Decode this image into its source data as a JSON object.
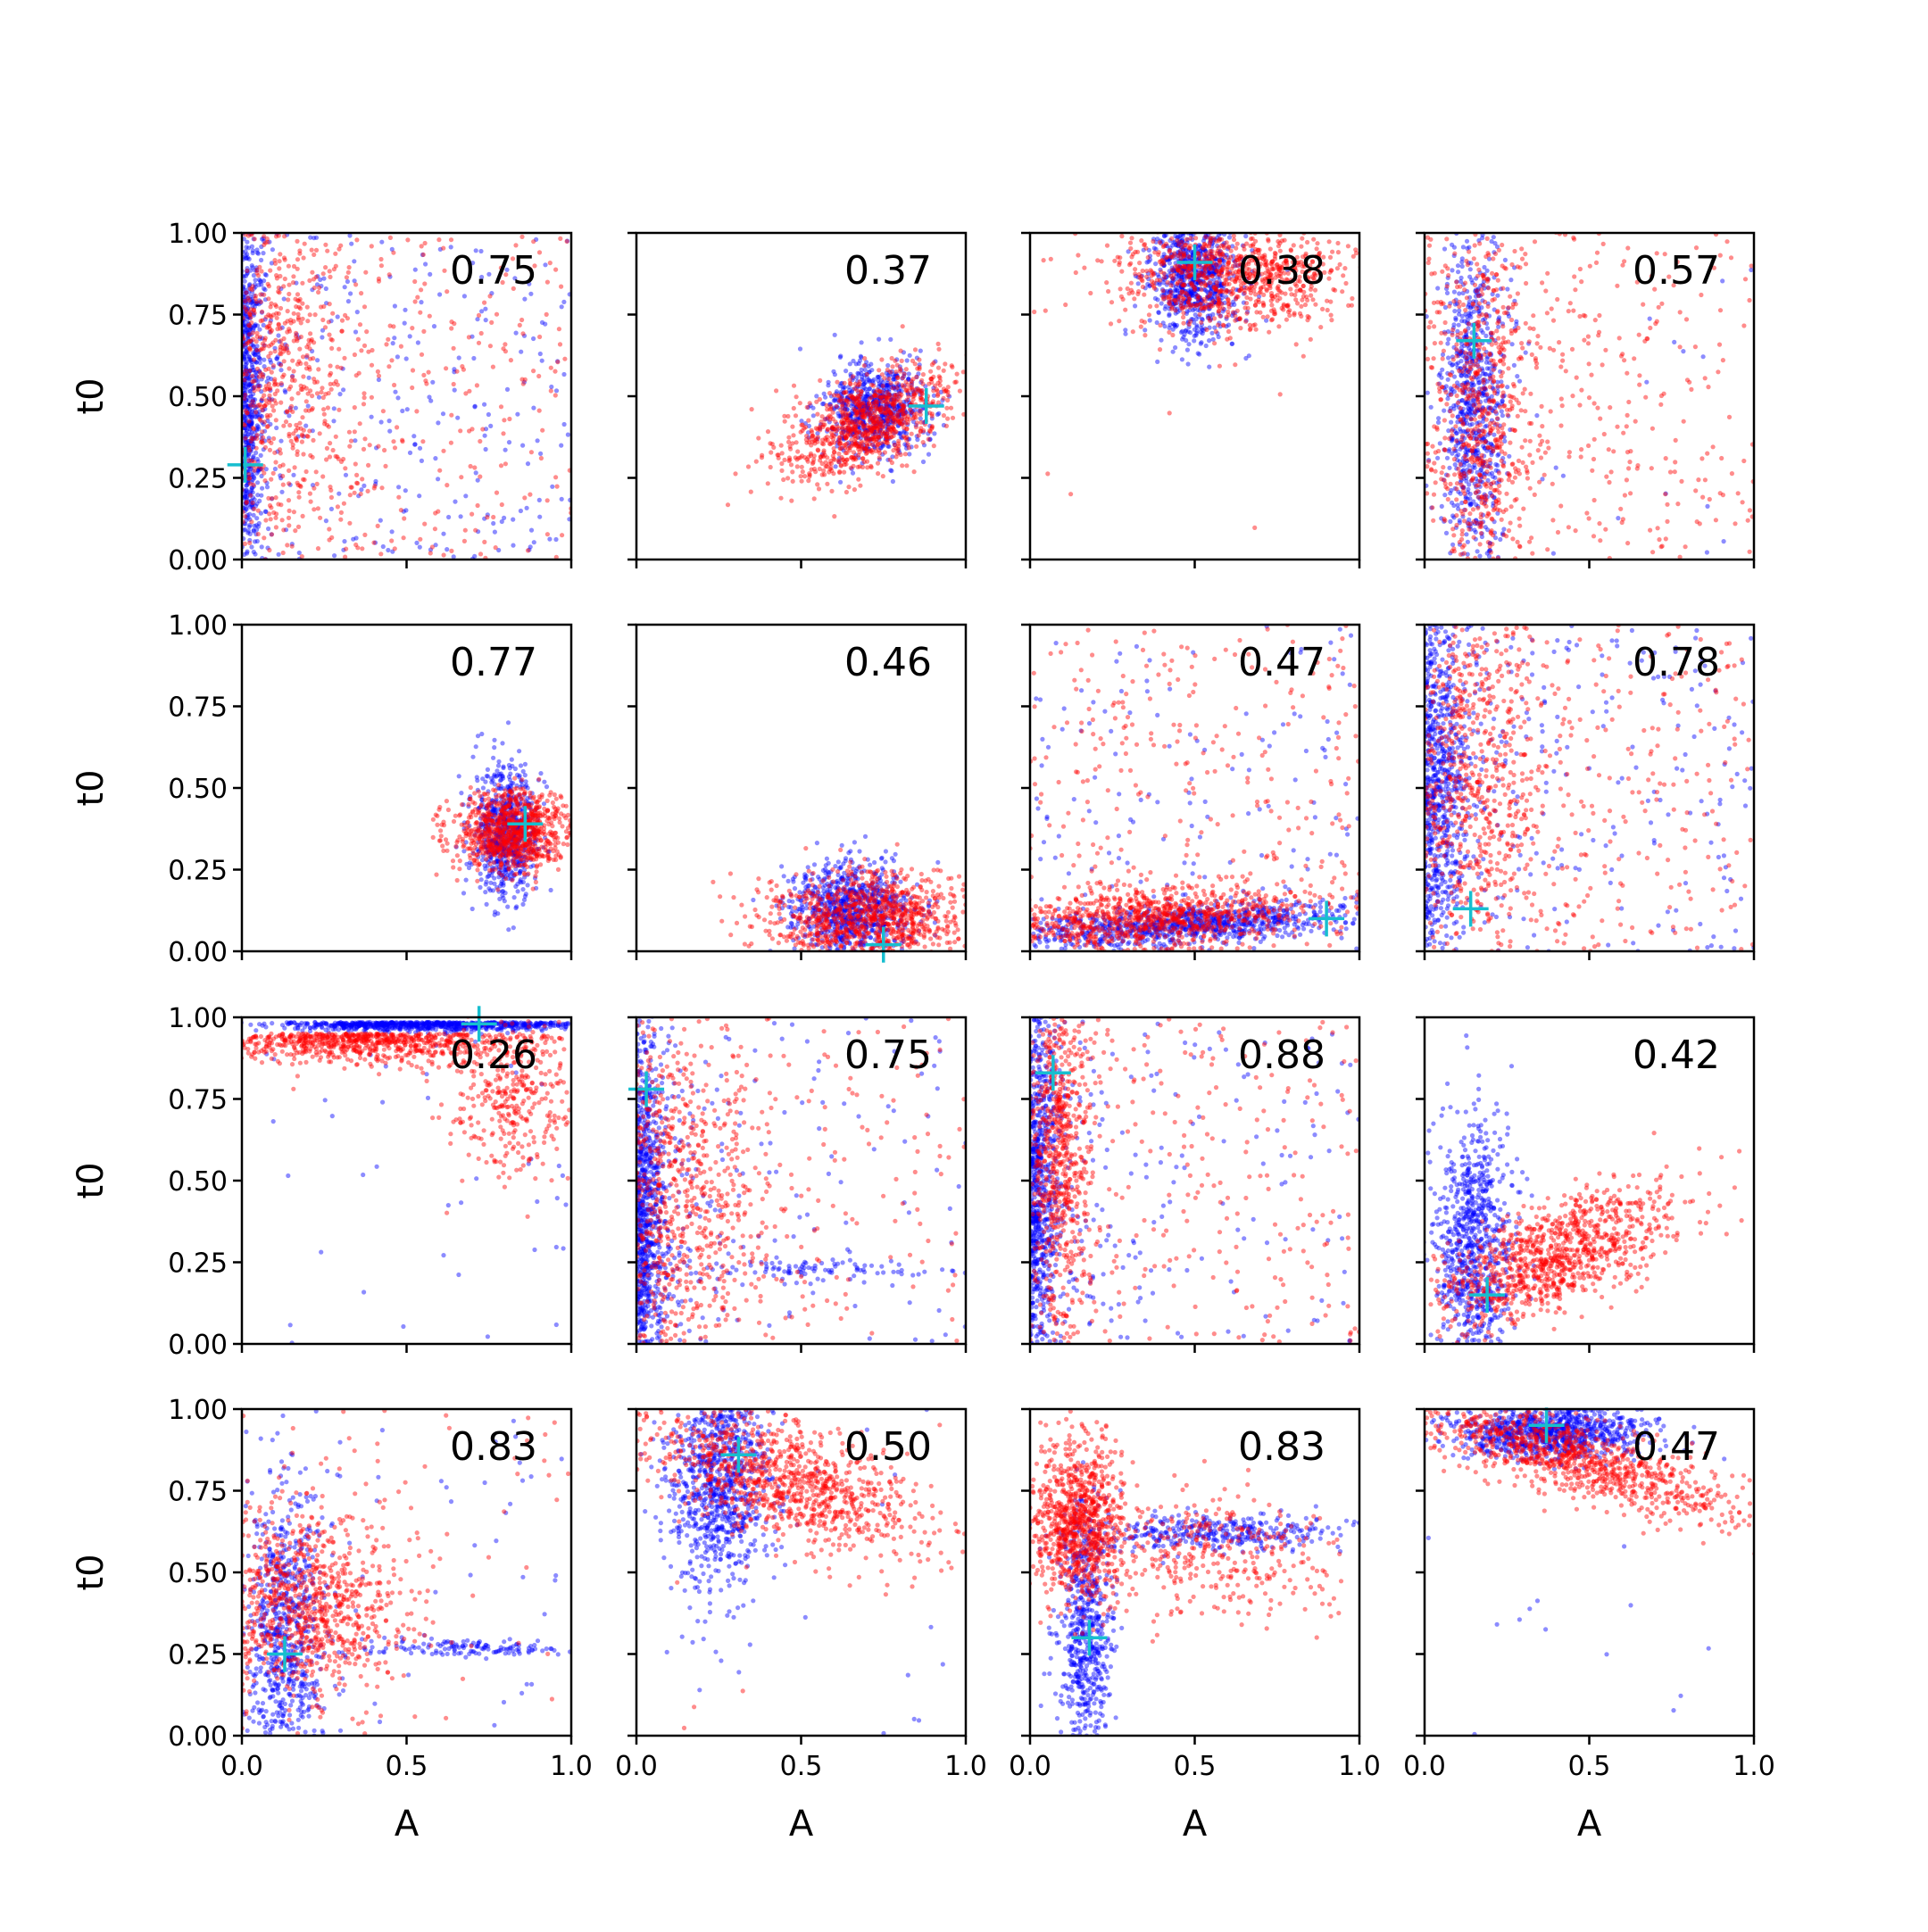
{
  "figure": {
    "layout": "4x4 grid of scatter subplots",
    "xlabel": "A",
    "ylabel": "t0",
    "xlim": [
      0,
      1
    ],
    "ylim": [
      0,
      1
    ],
    "xticks": [
      "0.0",
      "0.5",
      "1.0"
    ],
    "yticks": [
      "0.00",
      "0.25",
      "0.50",
      "0.75",
      "1.00"
    ],
    "colors": {
      "series_a": "#0000ff",
      "series_b": "#ff0000",
      "marker": "#17becf"
    },
    "marker_icon": "plus-marker-icon",
    "grid": false,
    "legend": "none"
  },
  "chart_data": [
    {
      "type": "scatter",
      "row": 1,
      "col": 1,
      "annotation": "0.75",
      "marker": {
        "x": 0.01,
        "y": 0.29
      },
      "series": [
        {
          "color": "#0000ff",
          "cluster": {
            "shape": "edge-x",
            "cx": 0.02,
            "cy": 0.5,
            "sx": 0.03,
            "sy": 0.3,
            "n": 700
          },
          "background": 250
        },
        {
          "color": "#ff0000",
          "cluster": {
            "shape": "mix",
            "cx": 0.12,
            "cy": 0.55,
            "sx": 0.1,
            "sy": 0.35,
            "n": 650
          },
          "background": 250
        }
      ]
    },
    {
      "type": "scatter",
      "row": 1,
      "col": 2,
      "annotation": "0.37",
      "marker": {
        "x": 0.88,
        "y": 0.47
      },
      "series": [
        {
          "color": "#0000ff",
          "cluster": {
            "shape": "gauss",
            "cx": 0.72,
            "cy": 0.46,
            "sx": 0.08,
            "sy": 0.07,
            "n": 700
          },
          "background": 0
        },
        {
          "color": "#ff0000",
          "cluster": {
            "shape": "tilted",
            "cx": 0.7,
            "cy": 0.42,
            "sx": 0.13,
            "sy": 0.07,
            "n": 900
          },
          "background": 0
        }
      ]
    },
    {
      "type": "scatter",
      "row": 1,
      "col": 3,
      "annotation": "0.38",
      "marker": {
        "x": 0.5,
        "y": 0.91
      },
      "series": [
        {
          "color": "#0000ff",
          "cluster": {
            "shape": "gauss",
            "cx": 0.5,
            "cy": 0.86,
            "sx": 0.07,
            "sy": 0.1,
            "n": 800
          },
          "background": 0
        },
        {
          "color": "#ff0000",
          "cluster": {
            "shape": "gauss",
            "cx": 0.62,
            "cy": 0.87,
            "sx": 0.18,
            "sy": 0.08,
            "n": 900
          },
          "background": 5
        }
      ]
    },
    {
      "type": "scatter",
      "row": 1,
      "col": 4,
      "annotation": "0.57",
      "marker": {
        "x": 0.15,
        "y": 0.67
      },
      "series": [
        {
          "color": "#0000ff",
          "cluster": {
            "shape": "gauss",
            "cx": 0.15,
            "cy": 0.5,
            "sx": 0.05,
            "sy": 0.28,
            "n": 800
          },
          "background": 20
        },
        {
          "color": "#ff0000",
          "cluster": {
            "shape": "mix",
            "cx": 0.18,
            "cy": 0.45,
            "sx": 0.06,
            "sy": 0.3,
            "n": 650
          },
          "background": 300
        }
      ]
    },
    {
      "type": "scatter",
      "row": 2,
      "col": 1,
      "annotation": "0.77",
      "marker": {
        "x": 0.86,
        "y": 0.39
      },
      "series": [
        {
          "color": "#0000ff",
          "cluster": {
            "shape": "gauss",
            "cx": 0.8,
            "cy": 0.36,
            "sx": 0.05,
            "sy": 0.1,
            "n": 700
          },
          "background": 0
        },
        {
          "color": "#ff0000",
          "cluster": {
            "shape": "gauss",
            "cx": 0.82,
            "cy": 0.37,
            "sx": 0.09,
            "sy": 0.06,
            "n": 900
          },
          "background": 0
        }
      ]
    },
    {
      "type": "scatter",
      "row": 2,
      "col": 2,
      "annotation": "0.46",
      "marker": {
        "x": 0.75,
        "y": 0.02
      },
      "series": [
        {
          "color": "#0000ff",
          "cluster": {
            "shape": "gauss",
            "cx": 0.65,
            "cy": 0.13,
            "sx": 0.09,
            "sy": 0.07,
            "n": 800
          },
          "background": 0
        },
        {
          "color": "#ff0000",
          "cluster": {
            "shape": "gauss",
            "cx": 0.72,
            "cy": 0.1,
            "sx": 0.17,
            "sy": 0.07,
            "n": 1000
          },
          "background": 0
        }
      ]
    },
    {
      "type": "scatter",
      "row": 2,
      "col": 3,
      "annotation": "0.47",
      "marker": {
        "x": 0.9,
        "y": 0.1
      },
      "series": [
        {
          "color": "#0000ff",
          "cluster": {
            "shape": "tilted-flat",
            "cx": 0.45,
            "cy": 0.08,
            "sx": 0.28,
            "sy": 0.03,
            "n": 900
          },
          "background": 150
        },
        {
          "color": "#ff0000",
          "cluster": {
            "shape": "tilted-flat",
            "cx": 0.35,
            "cy": 0.1,
            "sx": 0.25,
            "sy": 0.05,
            "n": 900
          },
          "background": 300
        }
      ]
    },
    {
      "type": "scatter",
      "row": 2,
      "col": 4,
      "annotation": "0.78",
      "marker": {
        "x": 0.14,
        "y": 0.13
      },
      "series": [
        {
          "color": "#0000ff",
          "cluster": {
            "shape": "edge-x",
            "cx": 0.05,
            "cy": 0.5,
            "sx": 0.06,
            "sy": 0.3,
            "n": 800
          },
          "background": 200
        },
        {
          "color": "#ff0000",
          "cluster": {
            "shape": "mix",
            "cx": 0.15,
            "cy": 0.55,
            "sx": 0.1,
            "sy": 0.3,
            "n": 650
          },
          "background": 250
        }
      ]
    },
    {
      "type": "scatter",
      "row": 3,
      "col": 1,
      "annotation": "0.26",
      "marker": {
        "x": 0.72,
        "y": 0.98
      },
      "series": [
        {
          "color": "#0000ff",
          "cluster": {
            "shape": "top-band",
            "cx": 0.6,
            "cy": 0.985,
            "sx": 0.25,
            "sy": 0.012,
            "n": 800
          },
          "background": 40
        },
        {
          "color": "#ff0000",
          "cluster": {
            "shape": "top-band",
            "cx": 0.35,
            "cy": 0.95,
            "sx": 0.25,
            "sy": 0.04,
            "n": 750
          },
          "background": 0,
          "extra": {
            "cx": 0.82,
            "cy": 0.75,
            "sx": 0.1,
            "sy": 0.12,
            "n": 350
          }
        }
      ]
    },
    {
      "type": "scatter",
      "row": 3,
      "col": 2,
      "annotation": "0.75",
      "marker": {
        "x": 0.03,
        "y": 0.78
      },
      "series": [
        {
          "color": "#0000ff",
          "cluster": {
            "shape": "edge-x",
            "cx": 0.02,
            "cy": 0.4,
            "sx": 0.04,
            "sy": 0.3,
            "n": 900
          },
          "background": 120,
          "extra": {
            "cx": 0.55,
            "cy": 0.23,
            "sx": 0.18,
            "sy": 0.015,
            "n": 90
          }
        },
        {
          "color": "#ff0000",
          "cluster": {
            "shape": "mix",
            "cx": 0.12,
            "cy": 0.45,
            "sx": 0.1,
            "sy": 0.3,
            "n": 700
          },
          "background": 150
        }
      ]
    },
    {
      "type": "scatter",
      "row": 3,
      "col": 3,
      "annotation": "0.88",
      "marker": {
        "x": 0.07,
        "y": 0.83
      },
      "series": [
        {
          "color": "#0000ff",
          "cluster": {
            "shape": "edge-x",
            "cx": 0.03,
            "cy": 0.5,
            "sx": 0.04,
            "sy": 0.3,
            "n": 800
          },
          "background": 150
        },
        {
          "color": "#ff0000",
          "cluster": {
            "shape": "gauss",
            "cx": 0.09,
            "cy": 0.6,
            "sx": 0.05,
            "sy": 0.28,
            "n": 700
          },
          "background": 250
        }
      ]
    },
    {
      "type": "scatter",
      "row": 3,
      "col": 4,
      "annotation": "0.42",
      "marker": {
        "x": 0.19,
        "y": 0.15
      },
      "series": [
        {
          "color": "#0000ff",
          "cluster": {
            "shape": "gauss",
            "cx": 0.15,
            "cy": 0.3,
            "sx": 0.06,
            "sy": 0.2,
            "n": 800
          },
          "background": 0
        },
        {
          "color": "#ff0000",
          "cluster": {
            "shape": "tilted",
            "cx": 0.4,
            "cy": 0.27,
            "sx": 0.18,
            "sy": 0.08,
            "n": 1000
          },
          "background": 0
        }
      ]
    },
    {
      "type": "scatter",
      "row": 4,
      "col": 1,
      "annotation": "0.83",
      "marker": {
        "x": 0.13,
        "y": 0.25
      },
      "series": [
        {
          "color": "#0000ff",
          "cluster": {
            "shape": "gauss",
            "cx": 0.13,
            "cy": 0.3,
            "sx": 0.06,
            "sy": 0.22,
            "n": 700
          },
          "background": 60,
          "extra": {
            "cx": 0.7,
            "cy": 0.27,
            "sx": 0.18,
            "sy": 0.015,
            "n": 140
          }
        },
        {
          "color": "#ff0000",
          "cluster": {
            "shape": "gauss",
            "cx": 0.2,
            "cy": 0.4,
            "sx": 0.15,
            "sy": 0.15,
            "n": 900
          },
          "background": 60
        }
      ]
    },
    {
      "type": "scatter",
      "row": 4,
      "col": 2,
      "annotation": "0.50",
      "marker": {
        "x": 0.31,
        "y": 0.86
      },
      "series": [
        {
          "color": "#0000ff",
          "cluster": {
            "shape": "gauss",
            "cx": 0.25,
            "cy": 0.8,
            "sx": 0.08,
            "sy": 0.17,
            "n": 900
          },
          "background": 20
        },
        {
          "color": "#ff0000",
          "cluster": {
            "shape": "tilted-down",
            "cx": 0.45,
            "cy": 0.78,
            "sx": 0.22,
            "sy": 0.09,
            "n": 1000
          },
          "background": 20
        }
      ]
    },
    {
      "type": "scatter",
      "row": 4,
      "col": 3,
      "annotation": "0.83",
      "marker": {
        "x": 0.18,
        "y": 0.3
      },
      "series": [
        {
          "color": "#0000ff",
          "cluster": {
            "shape": "gauss",
            "cx": 0.17,
            "cy": 0.3,
            "sx": 0.04,
            "sy": 0.2,
            "n": 600
          },
          "background": 0,
          "extra": {
            "cx": 0.55,
            "cy": 0.62,
            "sx": 0.22,
            "sy": 0.03,
            "n": 350
          }
        },
        {
          "color": "#ff0000",
          "cluster": {
            "shape": "gauss",
            "cx": 0.15,
            "cy": 0.65,
            "sx": 0.07,
            "sy": 0.12,
            "n": 900
          },
          "background": 0,
          "extra": {
            "cx": 0.55,
            "cy": 0.55,
            "sx": 0.2,
            "sy": 0.1,
            "n": 350
          }
        }
      ]
    },
    {
      "type": "scatter",
      "row": 4,
      "col": 4,
      "annotation": "0.47",
      "marker": {
        "x": 0.37,
        "y": 0.95
      },
      "series": [
        {
          "color": "#0000ff",
          "cluster": {
            "shape": "gauss",
            "cx": 0.38,
            "cy": 0.93,
            "sx": 0.15,
            "sy": 0.04,
            "n": 900
          },
          "background": 15
        },
        {
          "color": "#ff0000",
          "cluster": {
            "shape": "tilted-down",
            "cx": 0.45,
            "cy": 0.85,
            "sx": 0.25,
            "sy": 0.06,
            "n": 1000
          },
          "background": 0
        }
      ]
    }
  ]
}
